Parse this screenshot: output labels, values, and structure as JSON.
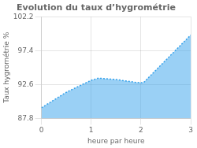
{
  "chart_data": {
    "type": "area",
    "title": "Evolution du taux d’hygrométrie",
    "xlabel": "heure par heure",
    "ylabel": "Taux hygrométrie %",
    "x": [
      0,
      0.5,
      1.0,
      1.15,
      1.5,
      1.9,
      2.0,
      2.05,
      3.0
    ],
    "values": [
      89.3,
      91.5,
      93.2,
      93.5,
      93.3,
      92.9,
      92.85,
      92.85,
      99.6
    ],
    "xlim": [
      0,
      3
    ],
    "ylim": [
      87.8,
      102.2
    ],
    "xticks": [
      0,
      1,
      2,
      3
    ],
    "yticks": [
      87.8,
      92.6,
      97.4,
      102.2
    ],
    "grid": true,
    "line_style": "dotted"
  }
}
